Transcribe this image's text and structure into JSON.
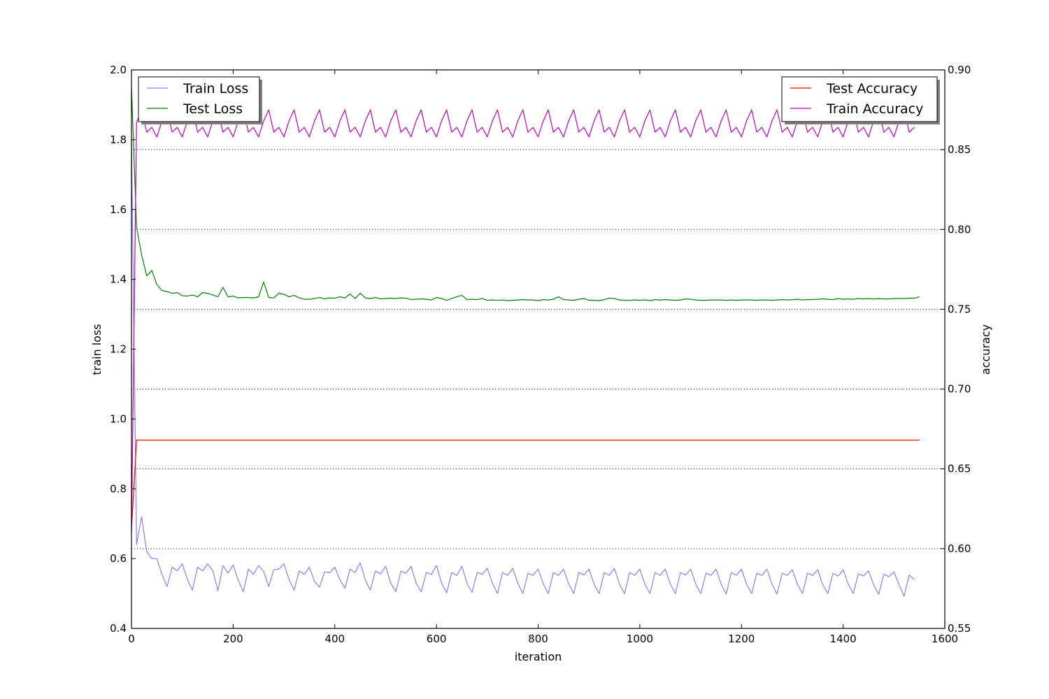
{
  "chart_data": {
    "type": "line",
    "xlabel": "iteration",
    "ylabel_left": "train loss",
    "ylabel_right": "accuracy",
    "xlim": [
      0,
      1600
    ],
    "ylim_left": [
      0.4,
      2.0
    ],
    "ylim_right": [
      0.55,
      0.9
    ],
    "x_ticks": [
      0,
      200,
      400,
      600,
      800,
      1000,
      1200,
      1400,
      1600
    ],
    "y_ticks_left": [
      "0.4",
      "0.6",
      "0.8",
      "1.0",
      "1.2",
      "1.4",
      "1.6",
      "1.8",
      "2.0"
    ],
    "y_ticks_right": [
      "0.55",
      "0.60",
      "0.65",
      "0.70",
      "0.75",
      "0.80",
      "0.85",
      "0.90"
    ],
    "grid": "right-axis horizontal dotted",
    "legend_left": {
      "placement": "upper-left",
      "entries": [
        "Train Loss",
        "Test Loss"
      ]
    },
    "legend_right": {
      "placement": "upper-right",
      "entries": [
        "Test Accuracy",
        "Train Accuracy"
      ]
    },
    "series": [
      {
        "name": "Train Loss",
        "axis": "left",
        "color": "#8080ff",
        "x": [
          0,
          10,
          20,
          30,
          40,
          50,
          60,
          70,
          80,
          90,
          100,
          110,
          120,
          130,
          140,
          150,
          160,
          170,
          180,
          190,
          200,
          210,
          220,
          230,
          240,
          250,
          260,
          270,
          280,
          290,
          300,
          310,
          320,
          330,
          340,
          350,
          360,
          370,
          380,
          390,
          400,
          410,
          420,
          430,
          440,
          450,
          460,
          470,
          480,
          490,
          500,
          510,
          520,
          530,
          540,
          550,
          560,
          570,
          580,
          590,
          600,
          610,
          620,
          630,
          640,
          650,
          660,
          670,
          680,
          690,
          700,
          710,
          720,
          730,
          740,
          750,
          760,
          770,
          780,
          790,
          800,
          810,
          820,
          830,
          840,
          850,
          860,
          870,
          880,
          890,
          900,
          910,
          920,
          930,
          940,
          950,
          960,
          970,
          980,
          990,
          1000,
          1010,
          1020,
          1030,
          1040,
          1050,
          1060,
          1070,
          1080,
          1090,
          1100,
          1110,
          1120,
          1130,
          1140,
          1150,
          1160,
          1170,
          1180,
          1190,
          1200,
          1210,
          1220,
          1230,
          1240,
          1250,
          1260,
          1270,
          1280,
          1290,
          1300,
          1310,
          1320,
          1330,
          1340,
          1350,
          1360,
          1370,
          1380,
          1390,
          1400,
          1410,
          1420,
          1430,
          1440,
          1450,
          1460,
          1470,
          1480,
          1490,
          1500,
          1510,
          1520,
          1530,
          1540
        ],
        "y": [
          1.8,
          0.64,
          0.72,
          0.62,
          0.6,
          0.6,
          0.555,
          0.52,
          0.575,
          0.565,
          0.585,
          0.54,
          0.51,
          0.575,
          0.565,
          0.585,
          0.565,
          0.508,
          0.58,
          0.558,
          0.582,
          0.538,
          0.505,
          0.57,
          0.555,
          0.58,
          0.563,
          0.52,
          0.568,
          0.57,
          0.585,
          0.54,
          0.51,
          0.565,
          0.555,
          0.575,
          0.535,
          0.518,
          0.562,
          0.56,
          0.575,
          0.54,
          0.515,
          0.57,
          0.56,
          0.588,
          0.538,
          0.51,
          0.565,
          0.556,
          0.578,
          0.53,
          0.505,
          0.564,
          0.558,
          0.578,
          0.53,
          0.505,
          0.56,
          0.555,
          0.58,
          0.53,
          0.502,
          0.56,
          0.552,
          0.578,
          0.53,
          0.503,
          0.56,
          0.555,
          0.572,
          0.53,
          0.5,
          0.56,
          0.552,
          0.572,
          0.53,
          0.5,
          0.558,
          0.552,
          0.57,
          0.528,
          0.5,
          0.56,
          0.552,
          0.57,
          0.528,
          0.5,
          0.56,
          0.553,
          0.57,
          0.527,
          0.5,
          0.56,
          0.552,
          0.572,
          0.527,
          0.5,
          0.56,
          0.552,
          0.57,
          0.527,
          0.5,
          0.56,
          0.552,
          0.57,
          0.527,
          0.5,
          0.56,
          0.553,
          0.57,
          0.527,
          0.5,
          0.558,
          0.552,
          0.57,
          0.527,
          0.498,
          0.56,
          0.552,
          0.57,
          0.527,
          0.5,
          0.558,
          0.552,
          0.57,
          0.527,
          0.498,
          0.558,
          0.552,
          0.568,
          0.527,
          0.5,
          0.558,
          0.552,
          0.568,
          0.525,
          0.5,
          0.558,
          0.55,
          0.568,
          0.527,
          0.5,
          0.556,
          0.55,
          0.565,
          0.525,
          0.498,
          0.555,
          0.548,
          0.562,
          0.525,
          0.492,
          0.553,
          0.54
        ]
      },
      {
        "name": "Test Loss",
        "axis": "left",
        "color": "#008000",
        "x": [
          0,
          10,
          20,
          30,
          40,
          50,
          60,
          70,
          80,
          90,
          100,
          110,
          120,
          130,
          140,
          150,
          160,
          170,
          180,
          190,
          200,
          210,
          220,
          230,
          240,
          250,
          260,
          270,
          280,
          290,
          300,
          310,
          320,
          330,
          340,
          350,
          360,
          370,
          380,
          390,
          400,
          410,
          420,
          430,
          440,
          450,
          460,
          470,
          480,
          490,
          500,
          510,
          520,
          530,
          540,
          550,
          560,
          570,
          580,
          590,
          600,
          610,
          620,
          630,
          640,
          650,
          660,
          670,
          680,
          690,
          700,
          710,
          720,
          730,
          740,
          750,
          760,
          770,
          780,
          790,
          800,
          810,
          820,
          830,
          840,
          850,
          860,
          870,
          880,
          890,
          900,
          910,
          920,
          930,
          940,
          950,
          960,
          970,
          980,
          990,
          1000,
          1010,
          1020,
          1030,
          1040,
          1050,
          1060,
          1070,
          1080,
          1090,
          1100,
          1110,
          1120,
          1130,
          1140,
          1150,
          1160,
          1170,
          1180,
          1190,
          1200,
          1210,
          1220,
          1230,
          1240,
          1250,
          1260,
          1270,
          1280,
          1290,
          1300,
          1310,
          1320,
          1330,
          1340,
          1350,
          1360,
          1370,
          1380,
          1390,
          1400,
          1410,
          1420,
          1430,
          1440,
          1450,
          1460,
          1470,
          1480,
          1490,
          1500,
          1510,
          1520,
          1530,
          1540,
          1550
        ],
        "y": [
          1.95,
          1.55,
          1.47,
          1.41,
          1.425,
          1.385,
          1.368,
          1.365,
          1.36,
          1.362,
          1.353,
          1.352,
          1.355,
          1.35,
          1.362,
          1.36,
          1.355,
          1.35,
          1.377,
          1.35,
          1.352,
          1.347,
          1.348,
          1.348,
          1.347,
          1.35,
          1.392,
          1.348,
          1.347,
          1.36,
          1.357,
          1.35,
          1.354,
          1.347,
          1.343,
          1.343,
          1.345,
          1.348,
          1.344,
          1.347,
          1.346,
          1.35,
          1.347,
          1.358,
          1.345,
          1.36,
          1.347,
          1.345,
          1.348,
          1.344,
          1.345,
          1.346,
          1.345,
          1.347,
          1.346,
          1.342,
          1.343,
          1.344,
          1.343,
          1.341,
          1.348,
          1.345,
          1.34,
          1.345,
          1.35,
          1.354,
          1.342,
          1.343,
          1.342,
          1.345,
          1.34,
          1.341,
          1.34,
          1.341,
          1.339,
          1.34,
          1.341,
          1.342,
          1.341,
          1.341,
          1.339,
          1.342,
          1.341,
          1.343,
          1.35,
          1.342,
          1.341,
          1.34,
          1.343,
          1.345,
          1.34,
          1.34,
          1.339,
          1.342,
          1.346,
          1.345,
          1.341,
          1.34,
          1.34,
          1.341,
          1.34,
          1.341,
          1.339,
          1.342,
          1.341,
          1.342,
          1.341,
          1.34,
          1.341,
          1.344,
          1.343,
          1.341,
          1.34,
          1.34,
          1.341,
          1.341,
          1.341,
          1.34,
          1.341,
          1.34,
          1.341,
          1.341,
          1.341,
          1.34,
          1.341,
          1.341,
          1.34,
          1.341,
          1.342,
          1.341,
          1.342,
          1.343,
          1.341,
          1.342,
          1.342,
          1.343,
          1.344,
          1.343,
          1.342,
          1.345,
          1.343,
          1.344,
          1.343,
          1.345,
          1.344,
          1.345,
          1.344,
          1.345,
          1.344,
          1.344,
          1.345,
          1.345,
          1.345,
          1.346,
          1.346,
          1.35
        ]
      },
      {
        "name": "Test Accuracy",
        "axis": "right",
        "color": "#ff0000",
        "x": [
          0,
          10,
          1550
        ],
        "y": [
          0.612,
          0.668,
          0.668
        ]
      },
      {
        "name": "Train Accuracy",
        "axis": "right",
        "color": "#bf00bf",
        "x": [
          0,
          10,
          20,
          30,
          40,
          50,
          60,
          70,
          80,
          90,
          100,
          110,
          120,
          130,
          140,
          150,
          160,
          170,
          180,
          190,
          200,
          210,
          220,
          230,
          240,
          250,
          260,
          270,
          280,
          290,
          300,
          310,
          320,
          330,
          340,
          350,
          360,
          370,
          380,
          390,
          400,
          410,
          420,
          430,
          440,
          450,
          460,
          470,
          480,
          490,
          500,
          510,
          520,
          530,
          540,
          550,
          560,
          570,
          580,
          590,
          600,
          610,
          620,
          630,
          640,
          650,
          660,
          670,
          680,
          690,
          700,
          710,
          720,
          730,
          740,
          750,
          760,
          770,
          780,
          790,
          800,
          810,
          820,
          830,
          840,
          850,
          860,
          870,
          880,
          890,
          900,
          910,
          920,
          930,
          940,
          950,
          960,
          970,
          980,
          990,
          1000,
          1010,
          1020,
          1030,
          1040,
          1050,
          1060,
          1070,
          1080,
          1090,
          1100,
          1110,
          1120,
          1130,
          1140,
          1150,
          1160,
          1170,
          1180,
          1190,
          1200,
          1210,
          1220,
          1230,
          1240,
          1250,
          1260,
          1270,
          1280,
          1290,
          1300,
          1310,
          1320,
          1330,
          1340,
          1350,
          1360,
          1370,
          1380,
          1390,
          1400,
          1410,
          1420,
          1430,
          1440,
          1450,
          1460,
          1470,
          1480,
          1490,
          1500,
          1510,
          1520,
          1530,
          1540
        ],
        "y": [
          0.61,
          0.867,
          0.875,
          0.861,
          0.864,
          0.858,
          0.868,
          0.875,
          0.861,
          0.864,
          0.858,
          0.868,
          0.875,
          0.861,
          0.864,
          0.858,
          0.868,
          0.875,
          0.861,
          0.864,
          0.858,
          0.868,
          0.875,
          0.861,
          0.864,
          0.858,
          0.868,
          0.875,
          0.861,
          0.864,
          0.858,
          0.868,
          0.875,
          0.861,
          0.864,
          0.858,
          0.868,
          0.875,
          0.861,
          0.864,
          0.858,
          0.868,
          0.875,
          0.861,
          0.864,
          0.858,
          0.868,
          0.875,
          0.861,
          0.864,
          0.858,
          0.868,
          0.875,
          0.861,
          0.864,
          0.858,
          0.868,
          0.875,
          0.861,
          0.864,
          0.858,
          0.868,
          0.875,
          0.861,
          0.864,
          0.858,
          0.868,
          0.875,
          0.861,
          0.864,
          0.858,
          0.868,
          0.875,
          0.861,
          0.864,
          0.858,
          0.868,
          0.875,
          0.861,
          0.864,
          0.858,
          0.868,
          0.875,
          0.861,
          0.864,
          0.858,
          0.868,
          0.875,
          0.861,
          0.864,
          0.858,
          0.868,
          0.875,
          0.861,
          0.864,
          0.858,
          0.868,
          0.875,
          0.861,
          0.864,
          0.858,
          0.868,
          0.875,
          0.861,
          0.864,
          0.858,
          0.868,
          0.875,
          0.861,
          0.864,
          0.858,
          0.868,
          0.875,
          0.861,
          0.864,
          0.858,
          0.868,
          0.875,
          0.861,
          0.864,
          0.858,
          0.868,
          0.875,
          0.861,
          0.864,
          0.858,
          0.868,
          0.875,
          0.861,
          0.864,
          0.858,
          0.868,
          0.875,
          0.861,
          0.864,
          0.858,
          0.868,
          0.875,
          0.861,
          0.864,
          0.858,
          0.868,
          0.875,
          0.861,
          0.864,
          0.858,
          0.868,
          0.875,
          0.861,
          0.864,
          0.858,
          0.868,
          0.875,
          0.861,
          0.864
        ]
      }
    ]
  }
}
